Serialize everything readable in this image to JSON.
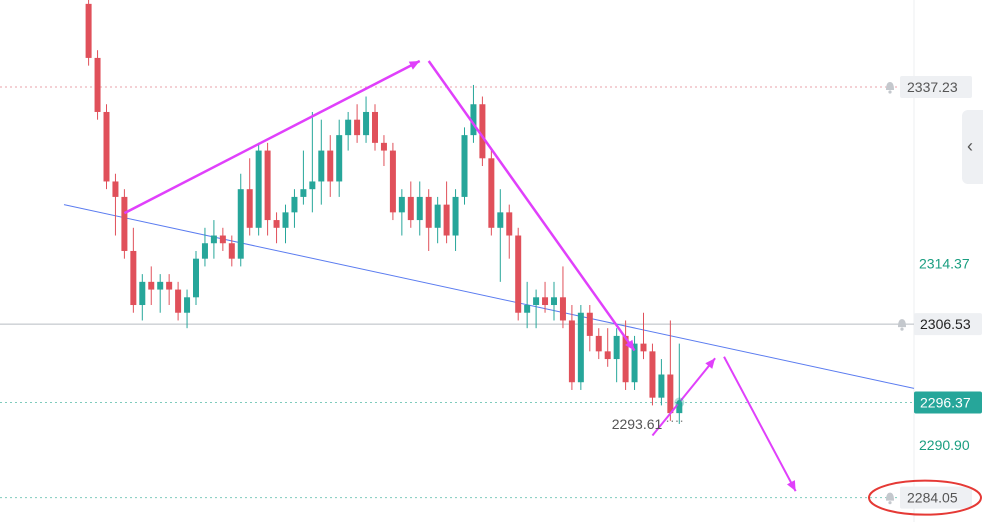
{
  "chart_data": {
    "type": "candlestick",
    "ylim": [
      2280.9,
      2348.5
    ],
    "colors": {
      "up": "#26a69a",
      "down": "#e0505a",
      "trend": "#5b7cf0",
      "arrow": "#e040fb",
      "highlight": "#e53935"
    },
    "y_ticks": [
      "2314.37",
      "2290.90"
    ],
    "price_lines": [
      {
        "value": "2337.23",
        "style": "dotted-red",
        "bell": true
      },
      {
        "value": "2306.53",
        "style": "solid-grey",
        "bell": true
      },
      {
        "value": "2296.37",
        "style": "dotted-green",
        "current": true
      },
      {
        "value": "2284.05",
        "style": "dotted-green",
        "bell": true,
        "circled": true
      }
    ],
    "low_marker": {
      "value": "2293.61"
    },
    "candles": [
      [
        2348.0,
        2350.0,
        2340.0,
        2341.0
      ],
      [
        2341.0,
        2342.0,
        2333.0,
        2334.0
      ],
      [
        2334.0,
        2335.0,
        2324.0,
        2325.0
      ],
      [
        2325.0,
        2326.0,
        2318.0,
        2323.0
      ],
      [
        2323.0,
        2324.0,
        2315.0,
        2316.0
      ],
      [
        2316.0,
        2319.0,
        2308.0,
        2309.0
      ],
      [
        2309.0,
        2313.0,
        2307.0,
        2312.0
      ],
      [
        2312.0,
        2314.0,
        2309.0,
        2311.0
      ],
      [
        2311.0,
        2313.0,
        2308.0,
        2312.0
      ],
      [
        2312.0,
        2313.0,
        2309.0,
        2311.0
      ],
      [
        2311.0,
        2312.0,
        2307.0,
        2308.0
      ],
      [
        2308.0,
        2311.0,
        2306.0,
        2310.0
      ],
      [
        2310.0,
        2316.0,
        2309.0,
        2315.0
      ],
      [
        2315.0,
        2319.0,
        2314.0,
        2317.0
      ],
      [
        2317.0,
        2320.0,
        2315.0,
        2318.0
      ],
      [
        2318.0,
        2319.0,
        2316.0,
        2317.0
      ],
      [
        2317.0,
        2318.0,
        2314.0,
        2315.0
      ],
      [
        2315.0,
        2326.0,
        2314.0,
        2324.0
      ],
      [
        2324.0,
        2328.0,
        2318.0,
        2319.0
      ],
      [
        2319.0,
        2330.0,
        2318.0,
        2329.0
      ],
      [
        2329.0,
        2330.0,
        2318.0,
        2320.0
      ],
      [
        2320.0,
        2321.0,
        2317.0,
        2319.0
      ],
      [
        2319.0,
        2322.0,
        2317.0,
        2321.0
      ],
      [
        2321.0,
        2324.0,
        2319.0,
        2323.0
      ],
      [
        2323.0,
        2329.0,
        2322.0,
        2324.0
      ],
      [
        2324.0,
        2334.0,
        2321.0,
        2325.0
      ],
      [
        2325.0,
        2333.0,
        2322.0,
        2329.0
      ],
      [
        2329.0,
        2331.0,
        2323.0,
        2325.0
      ],
      [
        2325.0,
        2333.0,
        2323.0,
        2331.0
      ],
      [
        2331.0,
        2334.0,
        2329.0,
        2333.0
      ],
      [
        2333.0,
        2335.0,
        2330.0,
        2331.0
      ],
      [
        2331.0,
        2336.0,
        2330.0,
        2334.0
      ],
      [
        2334.0,
        2335.0,
        2329.0,
        2330.0
      ],
      [
        2330.0,
        2331.0,
        2327.0,
        2329.0
      ],
      [
        2329.0,
        2330.0,
        2320.0,
        2321.0
      ],
      [
        2321.0,
        2324.0,
        2318.0,
        2323.0
      ],
      [
        2323.0,
        2325.0,
        2319.0,
        2320.0
      ],
      [
        2320.0,
        2325.0,
        2318.0,
        2323.0
      ],
      [
        2323.0,
        2324.0,
        2316.0,
        2319.0
      ],
      [
        2319.0,
        2323.0,
        2317.0,
        2322.0
      ],
      [
        2322.0,
        2325.0,
        2317.0,
        2318.0
      ],
      [
        2318.0,
        2324.0,
        2316.0,
        2323.0
      ],
      [
        2323.0,
        2332.0,
        2322.0,
        2331.0
      ],
      [
        2331.0,
        2337.5,
        2330.0,
        2335.0
      ],
      [
        2335.0,
        2336.0,
        2327.0,
        2328.0
      ],
      [
        2328.0,
        2329.0,
        2318.0,
        2319.0
      ],
      [
        2319.0,
        2324.0,
        2312.0,
        2321.0
      ],
      [
        2321.0,
        2322.0,
        2315.0,
        2318.0
      ],
      [
        2318.0,
        2319.0,
        2307.0,
        2308.0
      ],
      [
        2308.0,
        2312.0,
        2306.0,
        2309.0
      ],
      [
        2309.0,
        2311.0,
        2306.0,
        2310.0
      ],
      [
        2310.0,
        2312.0,
        2308.0,
        2309.0
      ],
      [
        2309.0,
        2312.0,
        2307.0,
        2310.0
      ],
      [
        2310.0,
        2314.0,
        2306.0,
        2307.0
      ],
      [
        2307.0,
        2309.0,
        2298.0,
        2299.0
      ],
      [
        2299.0,
        2309.0,
        2298.0,
        2308.0
      ],
      [
        2308.0,
        2309.0,
        2303.0,
        2305.0
      ],
      [
        2305.0,
        2306.0,
        2302.0,
        2303.0
      ],
      [
        2303.0,
        2306.0,
        2301.0,
        2302.0
      ],
      [
        2302.0,
        2306.0,
        2299.0,
        2305.0
      ],
      [
        2305.0,
        2307.0,
        2298.0,
        2299.0
      ],
      [
        2299.0,
        2305.0,
        2298.0,
        2304.0
      ],
      [
        2304.0,
        2308.0,
        2302.0,
        2303.0
      ],
      [
        2303.0,
        2304.0,
        2296.0,
        2297.0
      ],
      [
        2297.0,
        2302.0,
        2296.0,
        2300.0
      ],
      [
        2300.0,
        2307.0,
        2294.0,
        2295.0
      ],
      [
        2295.0,
        2304.0,
        2293.6,
        2296.4
      ]
    ]
  }
}
